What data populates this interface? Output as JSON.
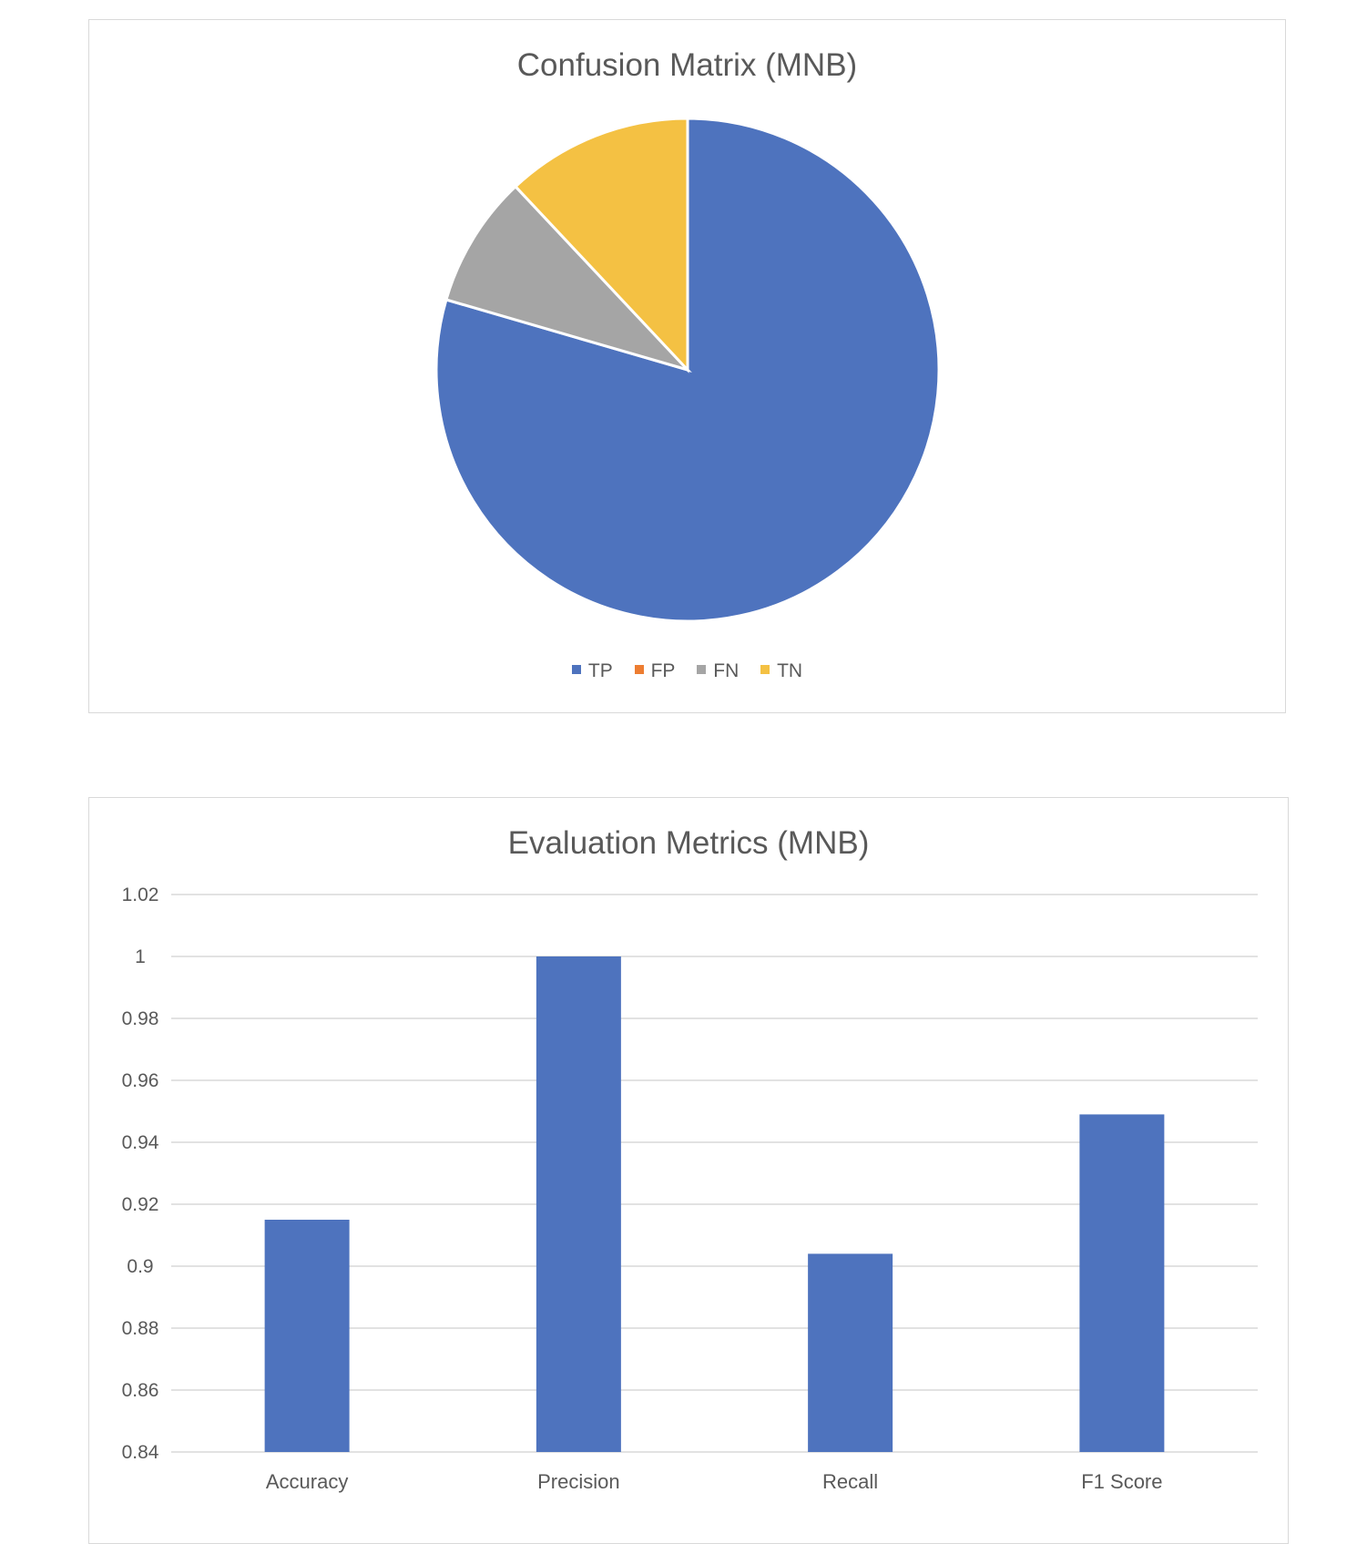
{
  "chart_data": [
    {
      "type": "pie",
      "title": "Confusion Matrix (MNB)",
      "categories": [
        "TP",
        "FP",
        "FN",
        "TN"
      ],
      "values": [
        79.5,
        0,
        8.5,
        12
      ],
      "colors": [
        "#4e73be",
        "#ed7d31",
        "#a5a5a5",
        "#f4c143"
      ],
      "legend": "bottom"
    },
    {
      "type": "bar",
      "title": "Evaluation Metrics (MNB)",
      "categories": [
        "Accuracy",
        "Precision",
        "Recall",
        "F1 Score"
      ],
      "values": [
        0.915,
        1.0,
        0.904,
        0.949
      ],
      "ylim": [
        0.84,
        1.02
      ],
      "yticks": [
        "0.84",
        "0.86",
        "0.88",
        "0.9",
        "0.92",
        "0.94",
        "0.96",
        "0.98",
        "1",
        "1.02"
      ],
      "grid": true,
      "bar_color": "#4e73be"
    }
  ]
}
